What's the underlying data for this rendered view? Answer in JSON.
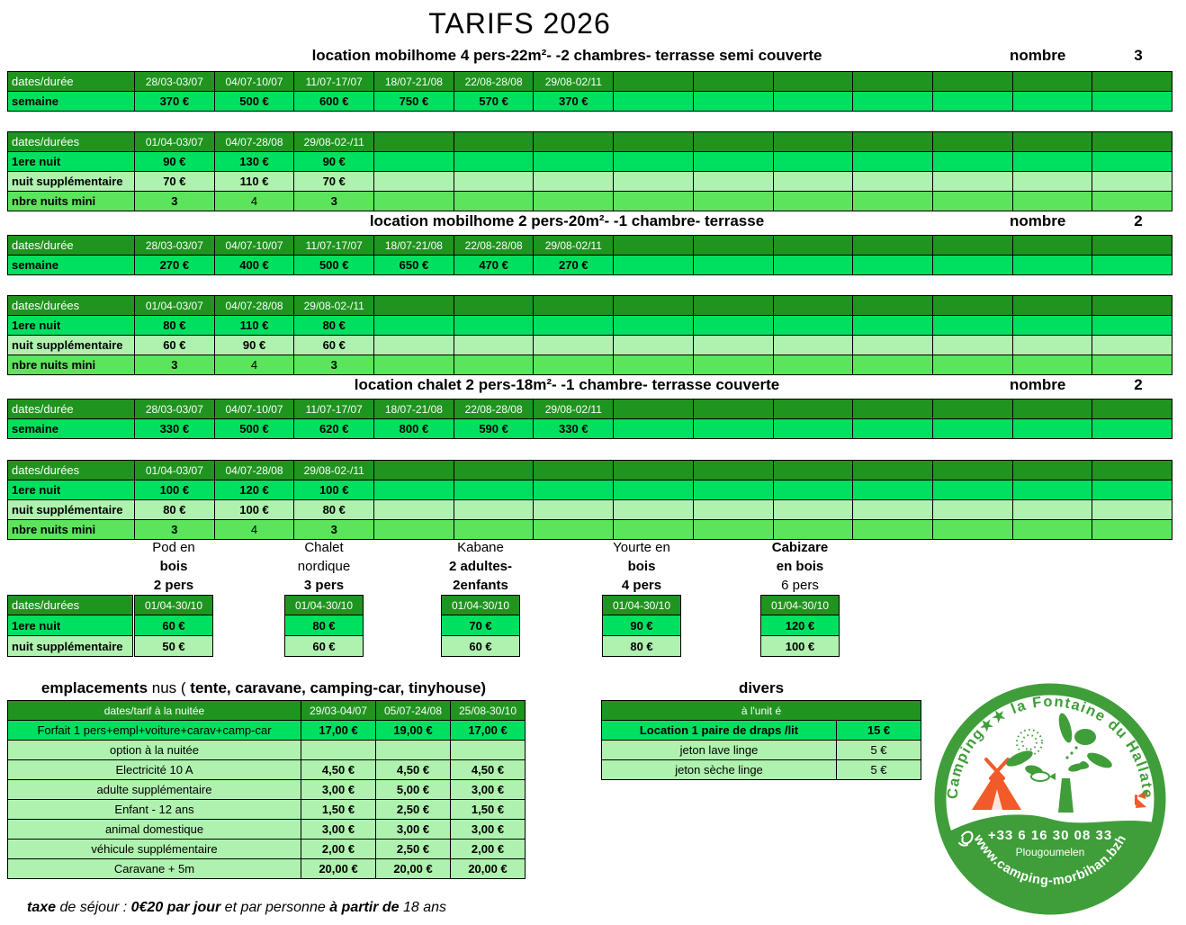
{
  "page_title": "TARIFS 2026",
  "colors": {
    "header_green": "#1f941f",
    "bright_green": "#00e060",
    "pale_green": "#aff2af",
    "mid_green": "#5ce45c",
    "logo_green": "#3f9e3a",
    "logo_orange": "#f15a29",
    "border": "#000000"
  },
  "sections": [
    {
      "title": "location mobilhome 4 pers-22m²- -2 chambres- terrasse semi couverte",
      "nombre_label": "nombre",
      "nombre_value": "3",
      "week_table": {
        "corner": "dates/durée",
        "dates": [
          "28/03-03/07",
          "04/07-10/07",
          "11/07-17/07",
          "18/07-21/08",
          "22/08-28/08",
          "29/08-02/11"
        ],
        "rows": [
          {
            "label": "semaine",
            "values": [
              "370 €",
              "500 €",
              "600 €",
              "750 €",
              "570 €",
              "370 €"
            ]
          }
        ]
      },
      "night_table": {
        "corner": "dates/durées",
        "dates": [
          "01/04-03/07",
          "04/07-28/08",
          "29/08-02-/11"
        ],
        "rows": [
          {
            "label": "1ere nuit",
            "values": [
              "90 €",
              "130 €",
              "90 €"
            ]
          },
          {
            "label": "nuit supplémentaire",
            "values": [
              "70 €",
              "110 €",
              "70 €"
            ]
          },
          {
            "label": "nbre nuits mini",
            "values": [
              "3",
              "4",
              "3"
            ]
          }
        ]
      }
    },
    {
      "title": "location mobilhome 2 pers-20m²- -1 chambre- terrasse",
      "nombre_label": "nombre",
      "nombre_value": "2",
      "week_table": {
        "corner": "dates/durée",
        "dates": [
          "28/03-03/07",
          "04/07-10/07",
          "11/07-17/07",
          "18/07-21/08",
          "22/08-28/08",
          "29/08-02/11"
        ],
        "rows": [
          {
            "label": "semaine",
            "values": [
              "270 €",
              "400 €",
              "500 €",
              "650 €",
              "470 €",
              "270 €"
            ]
          }
        ]
      },
      "night_table": {
        "corner": "dates/durées",
        "dates": [
          "01/04-03/07",
          "04/07-28/08",
          "29/08-02-/11"
        ],
        "rows": [
          {
            "label": "1ere nuit",
            "values": [
              "80 €",
              "110 €",
              "80 €"
            ]
          },
          {
            "label": "nuit supplémentaire",
            "values": [
              "60 €",
              "90 €",
              "60 €"
            ]
          },
          {
            "label": "nbre nuits mini",
            "values": [
              "3",
              "4",
              "3"
            ]
          }
        ]
      }
    },
    {
      "title": "location chalet 2 pers-18m²- -1 chambre- terrasse couverte",
      "nombre_label": "nombre",
      "nombre_value": "2",
      "week_table": {
        "corner": "dates/durée",
        "dates": [
          "28/03-03/07",
          "04/07-10/07",
          "11/07-17/07",
          "18/07-21/08",
          "22/08-28/08",
          "29/08-02/11"
        ],
        "rows": [
          {
            "label": "semaine",
            "values": [
              "330 €",
              "500 €",
              "620 €",
              "800 €",
              "590 €",
              "330 €"
            ]
          }
        ]
      },
      "night_table": {
        "corner": "dates/durées",
        "dates": [
          "01/04-03/07",
          "04/07-28/08",
          "29/08-02-/11"
        ],
        "rows": [
          {
            "label": "1ere nuit",
            "values": [
              "100 €",
              "120 €",
              "100 €"
            ]
          },
          {
            "label": "nuit supplémentaire",
            "values": [
              "80 €",
              "100 €",
              "80 €"
            ]
          },
          {
            "label": "nbre nuits mini",
            "values": [
              "3",
              "4",
              "3"
            ]
          }
        ]
      }
    }
  ],
  "glamping": {
    "row_labels": {
      "corner": "dates/durées",
      "first": "1ere nuit",
      "extra": "nuit supplémentaire"
    },
    "units": [
      {
        "title_lines": [
          {
            "text": "Pod en",
            "bold": false
          },
          {
            "text": "bois",
            "bold": true
          },
          {
            "text": "2 pers",
            "bold": true
          }
        ],
        "date": "01/04-30/10",
        "first_night": "60 €",
        "extra_night": "50 €"
      },
      {
        "title_lines": [
          {
            "text": "Chalet",
            "bold": false
          },
          {
            "text": "nordique",
            "bold": false
          },
          {
            "text": "3 pers",
            "bold": true
          }
        ],
        "date": "01/04-30/10",
        "first_night": "80 €",
        "extra_night": "60 €"
      },
      {
        "title_lines": [
          {
            "text": "Kabane",
            "bold": false
          },
          {
            "text": "2 adultes-",
            "bold": true
          },
          {
            "text": "2enfants",
            "bold": true
          }
        ],
        "date": "01/04-30/10",
        "first_night": "70 €",
        "extra_night": "60 €"
      },
      {
        "title_lines": [
          {
            "text": "Yourte en",
            "bold": false
          },
          {
            "text": "bois",
            "bold": true
          },
          {
            "text": "4 pers",
            "bold": true
          }
        ],
        "date": "01/04-30/10",
        "first_night": "90 €",
        "extra_night": "80 €"
      },
      {
        "title_lines": [
          {
            "text": "Cabizare",
            "bold": true
          },
          {
            "text": "en bois",
            "bold": true
          },
          {
            "text": "6 pers",
            "bold": false
          }
        ],
        "date": "01/04-30/10",
        "first_night": "120 €",
        "extra_night": "100 €"
      }
    ]
  },
  "emplacements": {
    "title_segments": [
      {
        "text": "emplacements ",
        "bold": true
      },
      {
        "text": "nus ( ",
        "bold": false
      },
      {
        "text": "tente, caravane, camping-car, tinyhouse)",
        "bold": true
      }
    ],
    "corner": "dates/tarif à la nuitée",
    "dates": [
      "29/03-04/07",
      "05/07-24/08",
      "25/08-30/10"
    ],
    "rows": [
      {
        "label": "Forfait 1 pers+empl+voiture+carav+camp-car",
        "values": [
          "17,00 €",
          "19,00 €",
          "17,00 €"
        ]
      },
      {
        "label": "option à la nuitée",
        "values": [
          "",
          "",
          ""
        ]
      },
      {
        "label": "Electricité 10 A",
        "values": [
          "4,50 €",
          "4,50 €",
          "4,50 €"
        ]
      },
      {
        "label": "adulte supplémentaire",
        "values": [
          "3,00 €",
          "5,00 €",
          "3,00 €"
        ]
      },
      {
        "label": "Enfant - 12 ans",
        "values": [
          "1,50 €",
          "2,50 €",
          "1,50 €"
        ]
      },
      {
        "label": "animal domestique",
        "values": [
          "3,00 €",
          "3,00 €",
          "3,00 €"
        ]
      },
      {
        "label": "véhicule supplémentaire",
        "values": [
          "2,00 €",
          "2,50 €",
          "2,00 €"
        ]
      },
      {
        "label": "Caravane + 5m",
        "values": [
          "20,00 €",
          "20,00 €",
          "20,00 €"
        ]
      }
    ]
  },
  "divers": {
    "title": "divers",
    "header": "à l'unit é",
    "rows": [
      {
        "label": "Location 1 paire de draps /lit",
        "value": "15 €"
      },
      {
        "label": "jeton lave linge",
        "value": "5 €"
      },
      {
        "label": "jeton sèche linge",
        "value": "5 €"
      }
    ]
  },
  "logo": {
    "name_arc": "Camping★★ la Fontaine du Hallate",
    "phone": "+33 6 16 30 08 33",
    "city": "Plougoumelen",
    "website": "www.camping-morbihan.bzh"
  },
  "footer": {
    "segments": [
      {
        "text": "taxe ",
        "bold": true
      },
      {
        "text": "de séjour : ",
        "bold": false
      },
      {
        "text": "0€20 par jour ",
        "bold": true
      },
      {
        "text": "et par personne ",
        "bold": false
      },
      {
        "text": "à partir de ",
        "bold": true
      },
      {
        "text": "18 ans",
        "bold": false
      }
    ]
  }
}
